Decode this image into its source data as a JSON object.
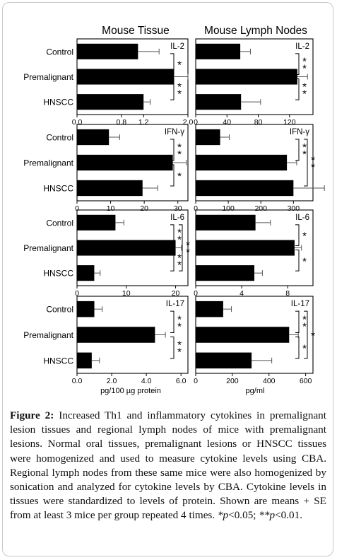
{
  "figure": {
    "column_titles": [
      "Mouse Tissue",
      "Mouse Lymph Nodes"
    ],
    "group_labels": [
      "Control",
      "Premalignant",
      "HNSCC"
    ],
    "x_titles": [
      "pg/100 µg protein",
      "pg/ml"
    ]
  },
  "chart_data": [
    {
      "type": "bar",
      "panel": "tissue",
      "title": "IL-2",
      "categories": [
        "Control",
        "Premalignant",
        "HNSCC"
      ],
      "values": [
        1.1,
        1.75,
        1.2
      ],
      "errors": [
        0.38,
        0.25,
        0.12
      ],
      "xlim": [
        0,
        2.0
      ],
      "ticks": [
        0,
        0.8,
        1.2,
        2.0
      ],
      "tick_labels": [
        "0.0",
        "0.8",
        "1.2",
        "2.0"
      ],
      "orientation": "horizontal",
      "significance": [
        {
          "from": 0,
          "to": 1,
          "label": "*"
        },
        {
          "from": 1,
          "to": 2,
          "label": "**"
        }
      ]
    },
    {
      "type": "bar",
      "panel": "lymph",
      "title": "IL-2",
      "categories": [
        "Control",
        "Premalignant",
        "HNSCC"
      ],
      "values": [
        57,
        130,
        58
      ],
      "errors": [
        13,
        13,
        25
      ],
      "xlim": [
        0,
        150
      ],
      "ticks": [
        0,
        40,
        80,
        120
      ],
      "tick_labels": [
        "0",
        "40",
        "80",
        "120"
      ],
      "orientation": "horizontal",
      "significance": [
        {
          "from": 0,
          "to": 1,
          "label": "**"
        },
        {
          "from": 1,
          "to": 2,
          "label": "**"
        }
      ]
    },
    {
      "type": "bar",
      "panel": "tissue",
      "title": "IFN-γ",
      "categories": [
        "Control",
        "Premalignant",
        "HNSCC"
      ],
      "values": [
        9.5,
        28.5,
        19.5
      ],
      "errors": [
        3.2,
        4,
        4.5
      ],
      "xlim": [
        0,
        33
      ],
      "ticks": [
        0,
        10,
        20,
        30
      ],
      "tick_labels": [
        "0",
        "10",
        "20",
        "30"
      ],
      "orientation": "horizontal",
      "significance": [
        {
          "from": 0,
          "to": 1,
          "label": "**"
        },
        {
          "from": 1,
          "to": 2,
          "label": "*"
        }
      ]
    },
    {
      "type": "bar",
      "panel": "lymph",
      "title": "IFN-γ",
      "categories": [
        "Control",
        "Premalignant",
        "HNSCC"
      ],
      "values": [
        75,
        280,
        300
      ],
      "errors": [
        28,
        30,
        95
      ],
      "xlim": [
        0,
        360
      ],
      "ticks": [
        0,
        100,
        200,
        300
      ],
      "tick_labels": [
        "0",
        "100",
        "200",
        "300"
      ],
      "orientation": "horizontal",
      "significance": [
        {
          "from": 0,
          "to": 1,
          "label": "**"
        },
        {
          "from": 0,
          "to": 2,
          "label": "**"
        }
      ]
    },
    {
      "type": "bar",
      "panel": "tissue",
      "title": "IL-6",
      "categories": [
        "Control",
        "Premalignant",
        "HNSCC"
      ],
      "values": [
        7.8,
        20,
        3.5
      ],
      "errors": [
        1.7,
        1.2,
        1.2
      ],
      "xlim": [
        0,
        22.5
      ],
      "ticks": [
        0,
        10,
        20
      ],
      "tick_labels": [
        "0",
        "10",
        "20"
      ],
      "orientation": "horizontal",
      "significance": [
        {
          "from": 0,
          "to": 1,
          "label": "**"
        },
        {
          "from": 1,
          "to": 2,
          "label": "**"
        },
        {
          "from": 0,
          "to": 2,
          "label": "**"
        }
      ]
    },
    {
      "type": "bar",
      "panel": "lymph",
      "title": "IL-6",
      "categories": [
        "Control",
        "Premalignant",
        "HNSCC"
      ],
      "values": [
        5.2,
        8.6,
        5.1
      ],
      "errors": [
        1.3,
        0.6,
        0.7
      ],
      "xlim": [
        0,
        10.2
      ],
      "ticks": [
        0,
        4,
        8
      ],
      "tick_labels": [
        "0",
        "4",
        "8"
      ],
      "orientation": "horizontal",
      "significance": [
        {
          "from": 0,
          "to": 1,
          "label": "*"
        },
        {
          "from": 1,
          "to": 2,
          "label": "*"
        }
      ]
    },
    {
      "type": "bar",
      "panel": "tissue",
      "title": "IL-17",
      "categories": [
        "Control",
        "Premalignant",
        "HNSCC"
      ],
      "values": [
        1.0,
        4.5,
        0.85
      ],
      "errors": [
        0.45,
        0.6,
        0.45
      ],
      "xlim": [
        0,
        6.4
      ],
      "ticks": [
        0,
        2.0,
        4.0,
        6.0
      ],
      "tick_labels": [
        "0.0",
        "2.0",
        "4.0",
        "6.0"
      ],
      "orientation": "horizontal",
      "significance": [
        {
          "from": 0,
          "to": 1,
          "label": "**"
        },
        {
          "from": 1,
          "to": 2,
          "label": "**"
        }
      ]
    },
    {
      "type": "bar",
      "panel": "lymph",
      "title": "IL-17",
      "categories": [
        "Control",
        "Premalignant",
        "HNSCC"
      ],
      "values": [
        150,
        510,
        305
      ],
      "errors": [
        45,
        50,
        110
      ],
      "xlim": [
        0,
        640
      ],
      "ticks": [
        0,
        200,
        400,
        600
      ],
      "tick_labels": [
        "0",
        "200",
        "400",
        "600"
      ],
      "orientation": "horizontal",
      "significance": [
        {
          "from": 0,
          "to": 1,
          "label": "**"
        },
        {
          "from": 1,
          "to": 2,
          "label": "*"
        },
        {
          "from": 0,
          "to": 2,
          "label": "*"
        }
      ]
    }
  ],
  "caption": {
    "label": "Figure 2:",
    "body": " Increased Th1 and inflammatory cytokines in premalignant lesion tissues and regional lymph nodes of mice with premalignant lesions. Normal oral tissues, premalignant lesions or HNSCC tissues were homogenized and used to measure cytokine levels using CBA. Regional lymph nodes from these same mice were also homogenized by sonication and analyzed for cytokine levels by CBA. Cytokine levels in tissues were standardized to levels of protein. Shown are means + SE from at least 3 mice per group repeated 4 times. ",
    "p1_sym": "*p",
    "p1_rest": "<0.05; ",
    "p2_sym": "**p",
    "p2_rest": "<0.01."
  }
}
